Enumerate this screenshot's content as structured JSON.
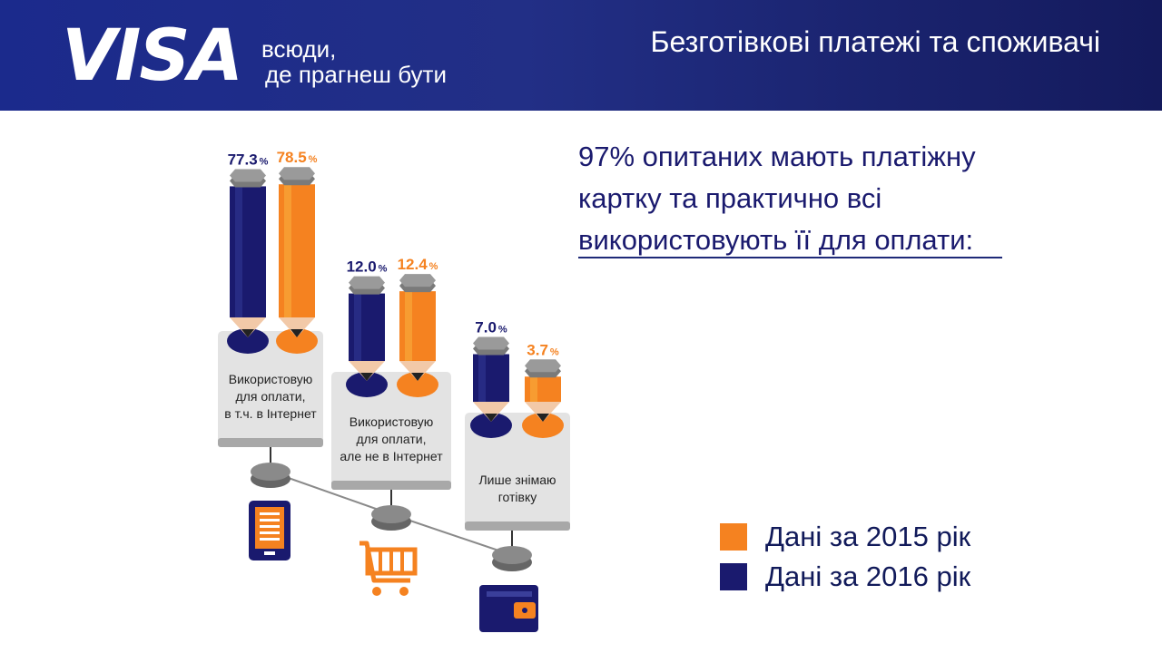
{
  "header": {
    "logo": "VISA",
    "tagline_line1": "всюди,",
    "tagline_line2": "де прагнеш бути",
    "title": "Безготівкові платежі та споживачі"
  },
  "headline": "97% опитаних мають платіжну картку та практично всі використовують її для оплати:",
  "colors": {
    "y2015": "#f58220",
    "y2016": "#1a1a6e",
    "header": "#1b2a8c",
    "gray": "#7a7a7a"
  },
  "chart_data": {
    "type": "bar",
    "categories": [
      [
        "Використовую",
        "для оплати,",
        "в т.ч. в Інтернет"
      ],
      [
        "Використовую",
        "для оплати,",
        "але не в Інтернет"
      ],
      [
        "Лише знімаю",
        "готівку"
      ]
    ],
    "category_icons": [
      "smartphone-icon",
      "shopping-cart-icon",
      "wallet-icon"
    ],
    "series": [
      {
        "name": "Дані за 2016 рік",
        "values": [
          77.3,
          12.0,
          7.0
        ],
        "labels": [
          "77.3",
          "12.0",
          "7.0"
        ],
        "color": "#1a1a6e"
      },
      {
        "name": "Дані за 2015 рік",
        "values": [
          78.5,
          12.4,
          3.7
        ],
        "labels": [
          "78.5",
          "12.4",
          "3.7"
        ],
        "color": "#f58220"
      }
    ],
    "unit": "%"
  },
  "legend": [
    {
      "label": "Дані за 2015 рік",
      "color": "#f58220"
    },
    {
      "label": "Дані за 2016 рік",
      "color": "#1a1a6e"
    }
  ]
}
